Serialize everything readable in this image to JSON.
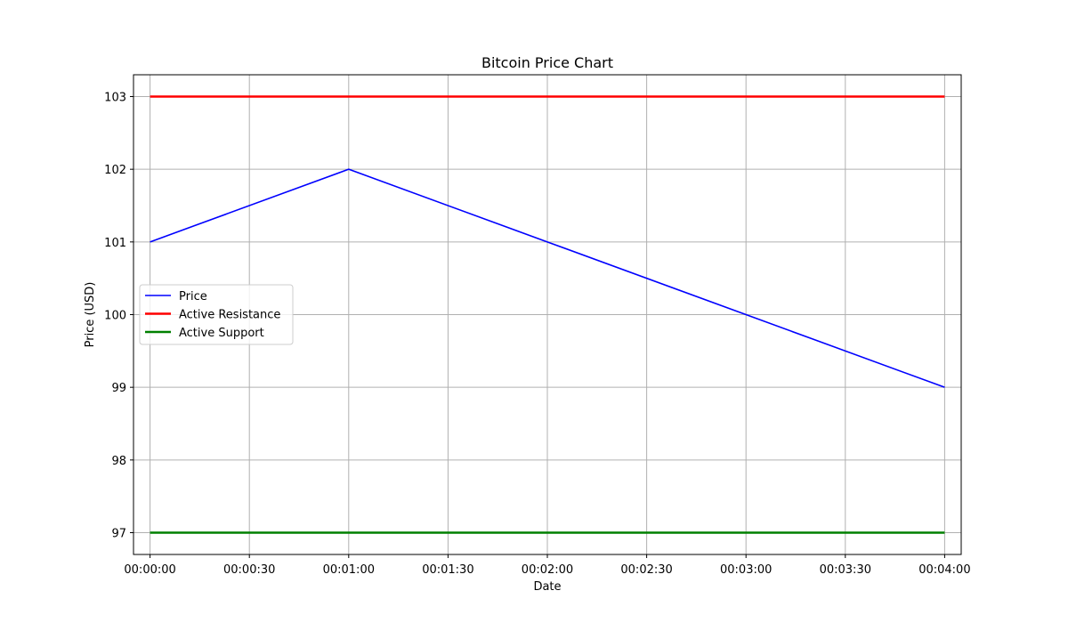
{
  "chart_data": {
    "type": "line",
    "title": "Bitcoin Price Chart",
    "xlabel": "Date",
    "ylabel": "Price (USD)",
    "x": [
      "00:00:00",
      "00:01:00",
      "00:02:00",
      "00:03:00",
      "00:04:00"
    ],
    "x_ticks": [
      "00:00:00",
      "00:00:30",
      "00:01:00",
      "00:01:30",
      "00:02:00",
      "00:02:30",
      "00:03:00",
      "00:03:30",
      "00:04:00"
    ],
    "y_ticks": [
      97,
      98,
      99,
      100,
      101,
      102,
      103
    ],
    "xlim": [
      "23:59:55",
      "00:04:05"
    ],
    "ylim": [
      96.7,
      103.3
    ],
    "grid": true,
    "legend_position": "center-left",
    "series": [
      {
        "name": "Price",
        "color": "#0000ff",
        "values": [
          101,
          102,
          101,
          100,
          99
        ]
      },
      {
        "name": "Active Resistance",
        "color": "#ff0000",
        "values": [
          103,
          103,
          103,
          103,
          103
        ]
      },
      {
        "name": "Active Support",
        "color": "#008000",
        "values": [
          97,
          97,
          97,
          97,
          97
        ]
      }
    ]
  }
}
